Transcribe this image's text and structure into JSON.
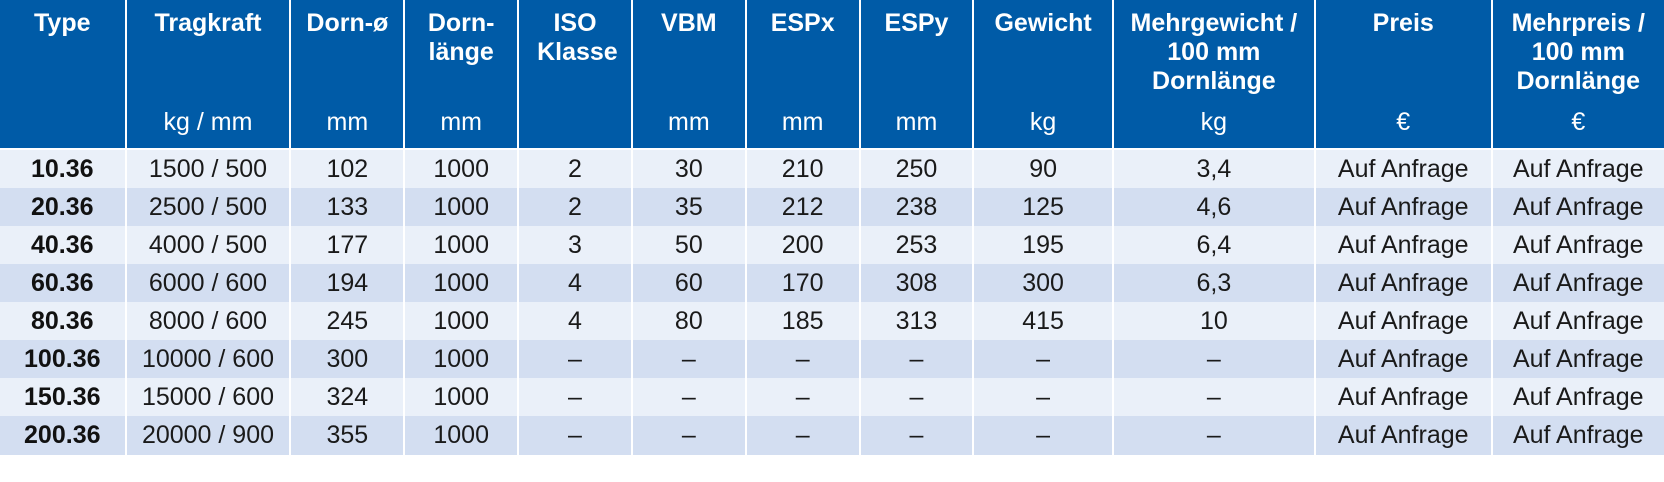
{
  "table": {
    "headers": [
      {
        "title": "Type",
        "unit": ""
      },
      {
        "title": "Tragkraft",
        "unit": "kg / mm"
      },
      {
        "title": "Dorn-ø",
        "unit": "mm"
      },
      {
        "title": "Dorn-länge",
        "unit": "mm"
      },
      {
        "title": "ISO Klasse",
        "unit": ""
      },
      {
        "title": "VBM",
        "unit": "mm"
      },
      {
        "title": "ESPx",
        "unit": "mm"
      },
      {
        "title": "ESPy",
        "unit": "mm"
      },
      {
        "title": "Gewicht",
        "unit": "kg"
      },
      {
        "title": "Mehrgewicht / 100 mm Dornlänge",
        "unit": "kg"
      },
      {
        "title": "Preis",
        "unit": "€"
      },
      {
        "title": "Mehrpreis / 100 mm Dornlänge",
        "unit": "€"
      }
    ],
    "rows": [
      [
        "10.36",
        "1500 / 500",
        "102",
        "1000",
        "2",
        "30",
        "210",
        "250",
        "90",
        "3,4",
        "Auf Anfrage",
        "Auf Anfrage"
      ],
      [
        "20.36",
        "2500 / 500",
        "133",
        "1000",
        "2",
        "35",
        "212",
        "238",
        "125",
        "4,6",
        "Auf Anfrage",
        "Auf Anfrage"
      ],
      [
        "40.36",
        "4000 / 500",
        "177",
        "1000",
        "3",
        "50",
        "200",
        "253",
        "195",
        "6,4",
        "Auf Anfrage",
        "Auf Anfrage"
      ],
      [
        "60.36",
        "6000 / 600",
        "194",
        "1000",
        "4",
        "60",
        "170",
        "308",
        "300",
        "6,3",
        "Auf Anfrage",
        "Auf Anfrage"
      ],
      [
        "80.36",
        "8000 / 600",
        "245",
        "1000",
        "4",
        "80",
        "185",
        "313",
        "415",
        "10",
        "Auf Anfrage",
        "Auf Anfrage"
      ],
      [
        "100.36",
        "10000 / 600",
        "300",
        "1000",
        "–",
        "–",
        "–",
        "–",
        "–",
        "–",
        "Auf Anfrage",
        "Auf Anfrage"
      ],
      [
        "150.36",
        "15000 / 600",
        "324",
        "1000",
        "–",
        "–",
        "–",
        "–",
        "–",
        "–",
        "Auf Anfrage",
        "Auf Anfrage"
      ],
      [
        "200.36",
        "20000 / 900",
        "355",
        "1000",
        "–",
        "–",
        "–",
        "–",
        "–",
        "–",
        "Auf Anfrage",
        "Auf Anfrage"
      ]
    ]
  },
  "colors": {
    "header_bg": "#005ba7",
    "header_text": "#ffffff",
    "row_light": "#eaf0f9",
    "row_dark": "#d3def1"
  }
}
